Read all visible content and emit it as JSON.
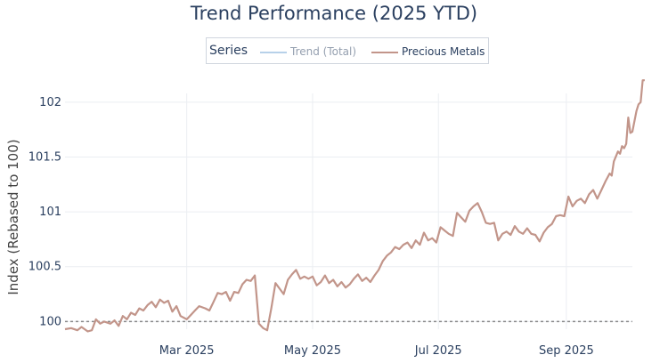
{
  "chart_data": {
    "type": "line",
    "title": "Trend Performance (2025 YTD)",
    "ylabel": "Index (Rebased to 100)",
    "xlabel": "",
    "xlim": [
      "2025-01-01",
      "2025-10-03"
    ],
    "ylim": [
      99.93,
      102.08
    ],
    "x_ticks": [
      {
        "date": "2025-03-01",
        "label": "Mar 2025"
      },
      {
        "date": "2025-05-01",
        "label": "May 2025"
      },
      {
        "date": "2025-07-01",
        "label": "Jul 2025"
      },
      {
        "date": "2025-09-01",
        "label": "Sep 2025"
      }
    ],
    "y_ticks": [
      {
        "value": 100,
        "label": "100"
      },
      {
        "value": 100.5,
        "label": "100.5"
      },
      {
        "value": 101,
        "label": "101"
      },
      {
        "value": 101.5,
        "label": "101.5"
      },
      {
        "value": 102,
        "label": "102"
      }
    ],
    "baseline": 100,
    "grid": true,
    "legend": {
      "title": "Series",
      "placement": "top-center"
    },
    "series": [
      {
        "name": "Trend (Total)",
        "color": "#6fa3d4",
        "visible": false,
        "points": []
      },
      {
        "name": "Precious Metals",
        "color": "#c2958a",
        "visible": true,
        "points": [
          [
            "2025-01-01",
            99.93
          ],
          [
            "2025-01-04",
            99.94
          ],
          [
            "2025-01-07",
            99.92
          ],
          [
            "2025-01-09",
            99.95
          ],
          [
            "2025-01-12",
            99.91
          ],
          [
            "2025-01-14",
            99.92
          ],
          [
            "2025-01-16",
            100.02
          ],
          [
            "2025-01-18",
            99.98
          ],
          [
            "2025-01-20",
            100.0
          ],
          [
            "2025-01-23",
            99.98
          ],
          [
            "2025-01-25",
            100.01
          ],
          [
            "2025-01-27",
            99.96
          ],
          [
            "2025-01-29",
            100.05
          ],
          [
            "2025-01-31",
            100.02
          ],
          [
            "2025-02-02",
            100.08
          ],
          [
            "2025-02-04",
            100.06
          ],
          [
            "2025-02-06",
            100.12
          ],
          [
            "2025-02-08",
            100.1
          ],
          [
            "2025-02-10",
            100.15
          ],
          [
            "2025-02-12",
            100.18
          ],
          [
            "2025-02-14",
            100.13
          ],
          [
            "2025-02-16",
            100.2
          ],
          [
            "2025-02-18",
            100.17
          ],
          [
            "2025-02-20",
            100.19
          ],
          [
            "2025-02-22",
            100.09
          ],
          [
            "2025-02-24",
            100.14
          ],
          [
            "2025-02-26",
            100.05
          ],
          [
            "2025-03-01",
            100.02
          ],
          [
            "2025-03-03",
            100.06
          ],
          [
            "2025-03-05",
            100.1
          ],
          [
            "2025-03-07",
            100.14
          ],
          [
            "2025-03-10",
            100.12
          ],
          [
            "2025-03-12",
            100.1
          ],
          [
            "2025-03-14",
            100.18
          ],
          [
            "2025-03-16",
            100.26
          ],
          [
            "2025-03-18",
            100.25
          ],
          [
            "2025-03-20",
            100.27
          ],
          [
            "2025-03-22",
            100.19
          ],
          [
            "2025-03-24",
            100.27
          ],
          [
            "2025-03-26",
            100.26
          ],
          [
            "2025-03-28",
            100.34
          ],
          [
            "2025-03-30",
            100.38
          ],
          [
            "2025-04-01",
            100.37
          ],
          [
            "2025-04-03",
            100.42
          ],
          [
            "2025-04-05",
            99.98
          ],
          [
            "2025-04-07",
            99.94
          ],
          [
            "2025-04-09",
            99.92
          ],
          [
            "2025-04-11",
            100.12
          ],
          [
            "2025-04-13",
            100.35
          ],
          [
            "2025-04-15",
            100.3
          ],
          [
            "2025-04-17",
            100.25
          ],
          [
            "2025-04-19",
            100.38
          ],
          [
            "2025-04-21",
            100.43
          ],
          [
            "2025-04-23",
            100.47
          ],
          [
            "2025-04-25",
            100.39
          ],
          [
            "2025-04-27",
            100.41
          ],
          [
            "2025-04-29",
            100.39
          ],
          [
            "2025-05-01",
            100.41
          ],
          [
            "2025-05-03",
            100.33
          ],
          [
            "2025-05-05",
            100.36
          ],
          [
            "2025-05-07",
            100.42
          ],
          [
            "2025-05-09",
            100.35
          ],
          [
            "2025-05-11",
            100.38
          ],
          [
            "2025-05-13",
            100.32
          ],
          [
            "2025-05-15",
            100.36
          ],
          [
            "2025-05-17",
            100.31
          ],
          [
            "2025-05-19",
            100.34
          ],
          [
            "2025-05-21",
            100.39
          ],
          [
            "2025-05-23",
            100.43
          ],
          [
            "2025-05-25",
            100.37
          ],
          [
            "2025-05-27",
            100.4
          ],
          [
            "2025-05-29",
            100.36
          ],
          [
            "2025-05-31",
            100.42
          ],
          [
            "2025-06-02",
            100.47
          ],
          [
            "2025-06-04",
            100.55
          ],
          [
            "2025-06-06",
            100.6
          ],
          [
            "2025-06-08",
            100.63
          ],
          [
            "2025-06-10",
            100.68
          ],
          [
            "2025-06-12",
            100.66
          ],
          [
            "2025-06-14",
            100.7
          ],
          [
            "2025-06-16",
            100.72
          ],
          [
            "2025-06-18",
            100.67
          ],
          [
            "2025-06-20",
            100.74
          ],
          [
            "2025-06-22",
            100.7
          ],
          [
            "2025-06-24",
            100.81
          ],
          [
            "2025-06-26",
            100.74
          ],
          [
            "2025-06-28",
            100.76
          ],
          [
            "2025-06-30",
            100.72
          ],
          [
            "2025-07-02",
            100.86
          ],
          [
            "2025-07-04",
            100.83
          ],
          [
            "2025-07-06",
            100.8
          ],
          [
            "2025-07-08",
            100.78
          ],
          [
            "2025-07-10",
            100.99
          ],
          [
            "2025-07-12",
            100.95
          ],
          [
            "2025-07-14",
            100.91
          ],
          [
            "2025-07-16",
            101.01
          ],
          [
            "2025-07-18",
            101.05
          ],
          [
            "2025-07-20",
            101.08
          ],
          [
            "2025-07-22",
            101.0
          ],
          [
            "2025-07-24",
            100.9
          ],
          [
            "2025-07-26",
            100.89
          ],
          [
            "2025-07-28",
            100.9
          ],
          [
            "2025-07-30",
            100.74
          ],
          [
            "2025-08-01",
            100.8
          ],
          [
            "2025-08-03",
            100.82
          ],
          [
            "2025-08-05",
            100.79
          ],
          [
            "2025-08-07",
            100.87
          ],
          [
            "2025-08-09",
            100.82
          ],
          [
            "2025-08-11",
            100.8
          ],
          [
            "2025-08-13",
            100.85
          ],
          [
            "2025-08-15",
            100.8
          ],
          [
            "2025-08-17",
            100.79
          ],
          [
            "2025-08-19",
            100.73
          ],
          [
            "2025-08-21",
            100.81
          ],
          [
            "2025-08-23",
            100.86
          ],
          [
            "2025-08-25",
            100.89
          ],
          [
            "2025-08-27",
            100.96
          ],
          [
            "2025-08-29",
            100.97
          ],
          [
            "2025-08-31",
            100.96
          ],
          [
            "2025-09-02",
            101.14
          ],
          [
            "2025-09-04",
            101.05
          ],
          [
            "2025-09-06",
            101.1
          ],
          [
            "2025-09-08",
            101.12
          ],
          [
            "2025-09-10",
            101.08
          ],
          [
            "2025-09-12",
            101.16
          ],
          [
            "2025-09-14",
            101.2
          ],
          [
            "2025-09-16",
            101.12
          ],
          [
            "2025-09-18",
            101.2
          ],
          [
            "2025-09-20",
            101.28
          ],
          [
            "2025-09-22",
            101.35
          ],
          [
            "2025-09-23",
            101.33
          ],
          [
            "2025-09-24",
            101.46
          ],
          [
            "2025-09-26",
            101.55
          ],
          [
            "2025-09-27",
            101.53
          ],
          [
            "2025-09-28",
            101.6
          ],
          [
            "2025-09-29",
            101.58
          ],
          [
            "2025-09-30",
            101.62
          ],
          [
            "2025-10-01",
            101.86
          ],
          [
            "2025-10-02",
            101.72
          ],
          [
            "2025-10-03",
            101.73
          ],
          [
            "2025-10-05",
            101.92
          ],
          [
            "2025-10-06",
            101.98
          ],
          [
            "2025-10-07",
            102.0
          ],
          [
            "2025-10-08",
            102.2
          ],
          [
            "2025-10-09",
            102.2
          ]
        ]
      }
    ]
  }
}
